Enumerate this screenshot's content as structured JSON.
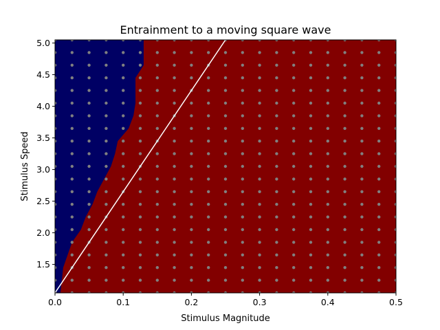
{
  "chart_data": {
    "type": "heatmap",
    "title": "Entrainment to a moving square wave",
    "xlabel": "Stimulus Magnitude",
    "ylabel": "Stimulus Speed",
    "xlim": [
      0.0,
      0.5
    ],
    "ylim": [
      1.05,
      5.05
    ],
    "x_ticks": [
      0.0,
      0.1,
      0.2,
      0.3,
      0.4,
      0.5
    ],
    "x_tick_labels": [
      "0.0",
      "0.1",
      "0.2",
      "0.3",
      "0.4",
      "0.5"
    ],
    "y_ticks": [
      1.5,
      2.0,
      2.5,
      3.0,
      3.5,
      4.0,
      4.5,
      5.0
    ],
    "y_tick_labels": [
      "1.5",
      "2.0",
      "2.5",
      "3.0",
      "3.5",
      "4.0",
      "4.5",
      "5.0"
    ],
    "grid": false,
    "colors": {
      "region_low": "#000064",
      "region_high": "#820000",
      "sample_points": "#808080",
      "boundary_line": "#ffffff"
    },
    "sample_grid": {
      "x_start": 0.0,
      "x_step": 0.025,
      "x_count": 21,
      "y_start": 1.05,
      "y_step": 0.2,
      "y_count": 21
    },
    "boundary_blue_region": {
      "description_points_speed": [
        1.05,
        1.45,
        1.85,
        2.05,
        2.25,
        2.45,
        2.65,
        2.85,
        3.05,
        3.25,
        3.45,
        3.65,
        3.85,
        4.05,
        4.25,
        4.45,
        4.65,
        4.85,
        5.05
      ],
      "max_magnitude": [
        0.008,
        0.012,
        0.025,
        0.038,
        0.045,
        0.055,
        0.062,
        0.072,
        0.082,
        0.088,
        0.092,
        0.108,
        0.115,
        0.118,
        0.118,
        0.118,
        0.13,
        0.13,
        0.13
      ]
    },
    "line": {
      "x": [
        0.0,
        0.25
      ],
      "y": [
        1.05,
        5.05
      ]
    }
  }
}
